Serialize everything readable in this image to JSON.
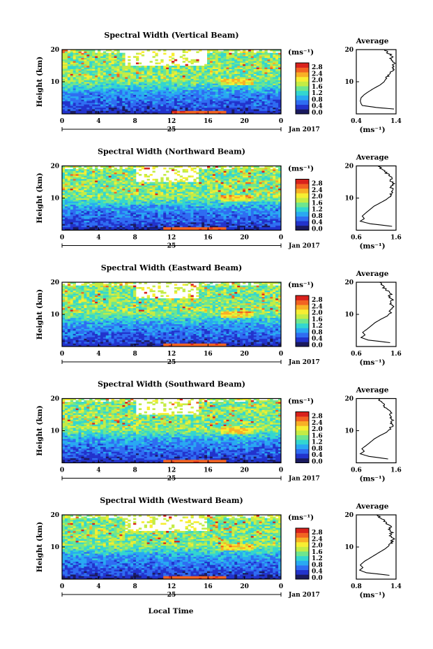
{
  "figure": {
    "x_axis_title": "Local Time",
    "date_label": "Jan 2017",
    "day_label": "25",
    "y_axis_title": "Height (km)",
    "colorbar_unit": "(ms⁻¹)",
    "avg_title": "Average",
    "avg_xlabel": "(ms⁻¹)"
  },
  "colorbar": {
    "ticks": [
      "0.0",
      "0.4",
      "0.8",
      "1.2",
      "1.6",
      "2.0",
      "2.4",
      "2.8"
    ],
    "range": [
      0.0,
      3.0
    ],
    "colors": [
      "#1a1a5e",
      "#2233cc",
      "#2f6df2",
      "#29a9f2",
      "#33d6d0",
      "#6ee68e",
      "#c4ec45",
      "#f7ee32",
      "#f8b026",
      "#f26322",
      "#d9221c"
    ]
  },
  "chart_data": [
    {
      "type": "heatmap",
      "title": "Spectral Width (Vertical Beam)",
      "xlabel": "Local Time",
      "ylabel": "Height (km)",
      "xlim": [
        0,
        24
      ],
      "ylim": [
        0,
        20
      ],
      "xticks": [
        "0",
        "4",
        "8",
        "12",
        "16",
        "20",
        "0"
      ],
      "yticks": [
        "20",
        "10"
      ],
      "colorbar_ticks": [
        "0.0",
        "0.4",
        "0.8",
        "1.2",
        "1.6",
        "2.0",
        "2.4",
        "2.8"
      ],
      "average": {
        "title": "Average",
        "xlabel": "(ms⁻¹)",
        "xlim": [
          0.4,
          1.4
        ],
        "xticks": [
          "0.4",
          "1.4"
        ],
        "yticks": [
          "20",
          "10"
        ],
        "profile": [
          [
            1.35,
            1.5
          ],
          [
            0.9,
            2.0
          ],
          [
            0.55,
            2.6
          ],
          [
            0.52,
            3.2
          ],
          [
            0.5,
            4.0
          ],
          [
            0.52,
            5.0
          ],
          [
            0.6,
            6.0
          ],
          [
            0.72,
            7.0
          ],
          [
            0.85,
            8.0
          ],
          [
            1.0,
            9.0
          ],
          [
            1.1,
            10.0
          ],
          [
            1.15,
            11.0
          ],
          [
            1.22,
            12.0
          ],
          [
            1.28,
            13.0
          ],
          [
            1.35,
            14.0
          ],
          [
            1.3,
            15.0
          ],
          [
            1.38,
            16.0
          ],
          [
            1.25,
            17.0
          ],
          [
            1.3,
            18.0
          ],
          [
            1.2,
            19.0
          ],
          [
            1.12,
            20.0
          ]
        ]
      },
      "low_band_hours": [
        12,
        18
      ],
      "fine_band_km": [
        9,
        11
      ],
      "gap_hours": [
        7,
        16
      ]
    },
    {
      "type": "heatmap",
      "title": "Spectral Width (Northward Beam)",
      "xlabel": "Local Time",
      "ylabel": "Height (km)",
      "xlim": [
        0,
        24
      ],
      "ylim": [
        0,
        20
      ],
      "xticks": [
        "0",
        "4",
        "8",
        "12",
        "16",
        "20",
        "0"
      ],
      "yticks": [
        "20",
        "10"
      ],
      "colorbar_ticks": [
        "0.0",
        "0.4",
        "0.8",
        "1.2",
        "1.6",
        "2.0",
        "2.4",
        "2.8"
      ],
      "average": {
        "title": "Average",
        "xlabel": "(ms⁻¹)",
        "xlim": [
          0.6,
          1.6
        ],
        "xticks": [
          "0.6",
          "1.6"
        ],
        "yticks": [
          "20",
          "10"
        ],
        "profile": [
          [
            1.5,
            1.2
          ],
          [
            0.95,
            2.0
          ],
          [
            0.7,
            2.8
          ],
          [
            0.8,
            3.6
          ],
          [
            0.75,
            4.4
          ],
          [
            0.85,
            5.5
          ],
          [
            0.95,
            6.5
          ],
          [
            1.05,
            7.5
          ],
          [
            1.2,
            8.5
          ],
          [
            1.35,
            9.5
          ],
          [
            1.45,
            10.5
          ],
          [
            1.5,
            11.5
          ],
          [
            1.52,
            12.5
          ],
          [
            1.48,
            13.5
          ],
          [
            1.55,
            14.5
          ],
          [
            1.45,
            15.5
          ],
          [
            1.5,
            16.5
          ],
          [
            1.38,
            17.5
          ],
          [
            1.3,
            18.5
          ],
          [
            1.2,
            19.5
          ],
          [
            1.15,
            20.0
          ]
        ]
      },
      "low_band_hours": [
        11,
        18
      ],
      "fine_band_km": [
        9,
        11
      ],
      "gap_hours": [
        8,
        15
      ]
    },
    {
      "type": "heatmap",
      "title": "Spectral Width (Eastward Beam)",
      "xlabel": "Local Time",
      "ylabel": "Height (km)",
      "xlim": [
        0,
        24
      ],
      "ylim": [
        0,
        20
      ],
      "xticks": [
        "0",
        "4",
        "8",
        "12",
        "16",
        "20",
        "0"
      ],
      "yticks": [
        "20",
        "10"
      ],
      "colorbar_ticks": [
        "0.0",
        "0.4",
        "0.8",
        "1.2",
        "1.6",
        "2.0",
        "2.4",
        "2.8"
      ],
      "average": {
        "title": "Average",
        "xlabel": "(ms⁻¹)",
        "xlim": [
          0.6,
          1.6
        ],
        "xticks": [
          "0.6",
          "1.6"
        ],
        "yticks": [
          "20",
          "10"
        ],
        "profile": [
          [
            1.45,
            1.2
          ],
          [
            0.9,
            2.0
          ],
          [
            0.72,
            2.8
          ],
          [
            0.82,
            3.6
          ],
          [
            0.76,
            4.4
          ],
          [
            0.88,
            5.5
          ],
          [
            0.98,
            6.5
          ],
          [
            1.08,
            7.5
          ],
          [
            1.22,
            8.5
          ],
          [
            1.38,
            9.5
          ],
          [
            1.45,
            10.5
          ],
          [
            1.48,
            11.5
          ],
          [
            1.55,
            12.5
          ],
          [
            1.45,
            13.5
          ],
          [
            1.5,
            14.5
          ],
          [
            1.42,
            15.5
          ],
          [
            1.48,
            16.5
          ],
          [
            1.35,
            17.5
          ],
          [
            1.28,
            18.5
          ],
          [
            1.22,
            19.5
          ],
          [
            1.18,
            20.0
          ]
        ]
      },
      "low_band_hours": [
        11,
        18
      ],
      "fine_band_km": [
        9,
        11
      ],
      "gap_hours": [
        8,
        15
      ]
    },
    {
      "type": "heatmap",
      "title": "Spectral Width (Southward Beam)",
      "xlabel": "Local Time",
      "ylabel": "Height (km)",
      "xlim": [
        0,
        24
      ],
      "ylim": [
        0,
        20
      ],
      "xticks": [
        "0",
        "4",
        "8",
        "12",
        "16",
        "20",
        "0"
      ],
      "yticks": [
        "20",
        "10"
      ],
      "colorbar_ticks": [
        "0.0",
        "0.4",
        "0.8",
        "1.2",
        "1.6",
        "2.0",
        "2.4",
        "2.8"
      ],
      "average": {
        "title": "Average",
        "xlabel": "(ms⁻¹)",
        "xlim": [
          0.6,
          1.6
        ],
        "xticks": [
          "0.6",
          "1.6"
        ],
        "yticks": [
          "20",
          "10"
        ],
        "profile": [
          [
            1.4,
            1.2
          ],
          [
            0.92,
            2.0
          ],
          [
            0.7,
            2.8
          ],
          [
            0.8,
            3.6
          ],
          [
            0.74,
            4.4
          ],
          [
            0.86,
            5.5
          ],
          [
            0.96,
            6.5
          ],
          [
            1.06,
            7.5
          ],
          [
            1.2,
            8.5
          ],
          [
            1.36,
            9.5
          ],
          [
            1.44,
            10.5
          ],
          [
            1.5,
            11.5
          ],
          [
            1.46,
            12.5
          ],
          [
            1.52,
            13.5
          ],
          [
            1.44,
            14.5
          ],
          [
            1.48,
            15.5
          ],
          [
            1.4,
            16.5
          ],
          [
            1.32,
            17.5
          ],
          [
            1.26,
            18.5
          ],
          [
            1.2,
            19.5
          ],
          [
            1.15,
            20.0
          ]
        ]
      },
      "low_band_hours": [
        11,
        18
      ],
      "fine_band_km": [
        9,
        11
      ],
      "gap_hours": [
        8,
        15
      ]
    },
    {
      "type": "heatmap",
      "title": "Spectral Width (Westward Beam)",
      "xlabel": "Local Time",
      "ylabel": "Height (km)",
      "xlim": [
        0,
        24
      ],
      "ylim": [
        0,
        20
      ],
      "xticks": [
        "0",
        "4",
        "8",
        "12",
        "16",
        "20",
        "0"
      ],
      "yticks": [
        "20",
        "10"
      ],
      "colorbar_ticks": [
        "0.0",
        "0.4",
        "0.8",
        "1.2",
        "1.6",
        "2.0",
        "2.4",
        "2.8"
      ],
      "average": {
        "title": "Average",
        "xlabel": "(ms⁻¹)",
        "xlim": [
          0.8,
          1.4
        ],
        "xticks": [
          "0.8",
          "1.4"
        ],
        "yticks": [
          "20",
          "10"
        ],
        "profile": [
          [
            1.3,
            1.2
          ],
          [
            0.95,
            2.0
          ],
          [
            0.85,
            2.8
          ],
          [
            0.9,
            3.6
          ],
          [
            0.86,
            4.4
          ],
          [
            0.92,
            5.5
          ],
          [
            1.0,
            6.5
          ],
          [
            1.08,
            7.5
          ],
          [
            1.16,
            8.5
          ],
          [
            1.24,
            9.5
          ],
          [
            1.3,
            10.5
          ],
          [
            1.33,
            11.5
          ],
          [
            1.36,
            12.5
          ],
          [
            1.3,
            13.5
          ],
          [
            1.34,
            14.5
          ],
          [
            1.28,
            15.5
          ],
          [
            1.32,
            16.5
          ],
          [
            1.24,
            17.5
          ],
          [
            1.2,
            18.5
          ],
          [
            1.14,
            19.5
          ],
          [
            1.1,
            20.0
          ]
        ]
      },
      "low_band_hours": [
        11,
        18
      ],
      "fine_band_km": [
        9,
        11
      ],
      "gap_hours": [
        7,
        16
      ]
    }
  ]
}
